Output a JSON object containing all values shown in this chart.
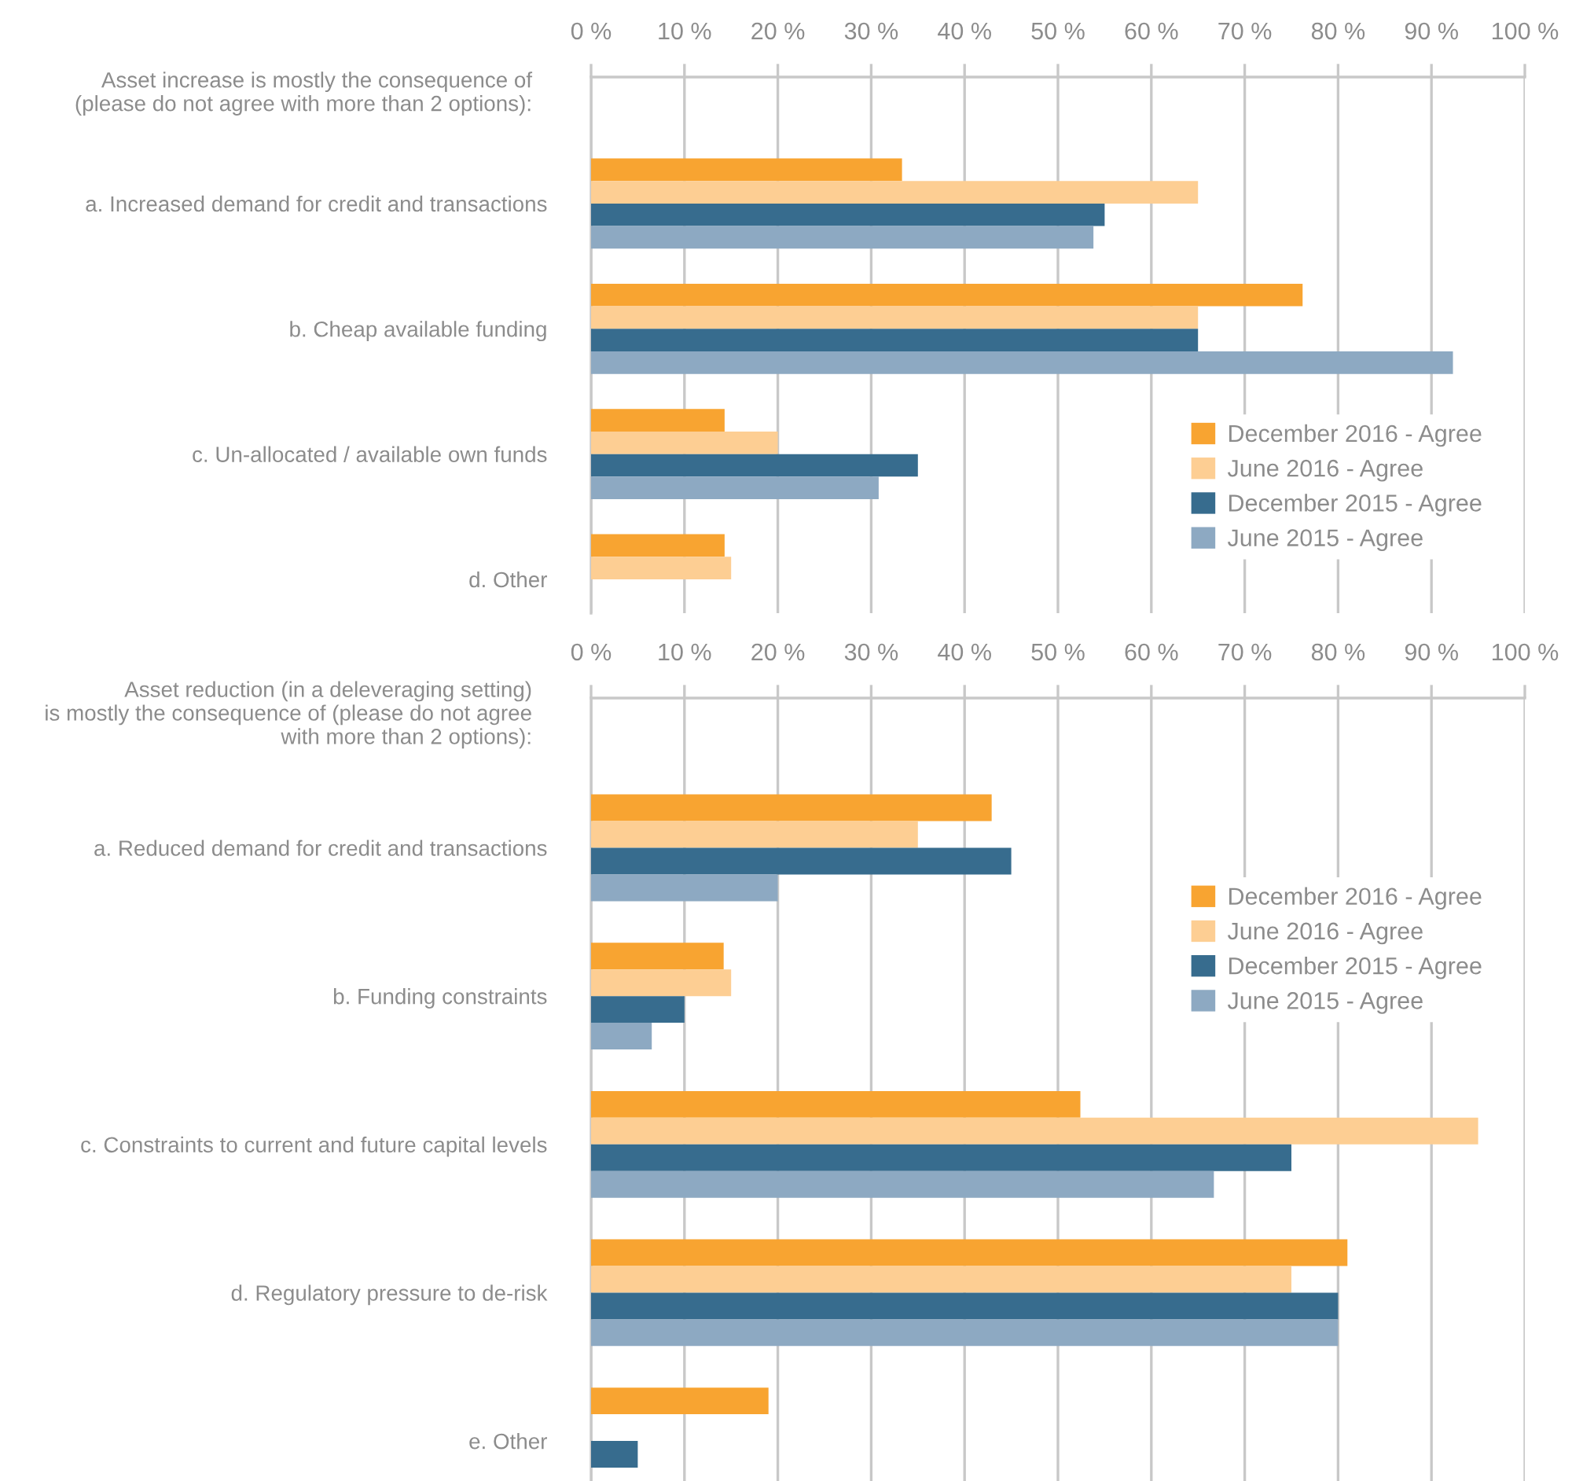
{
  "chart_data": [
    {
      "type": "bar",
      "orientation": "horizontal",
      "title": "Asset increase is mostly the consequence of\n(please do not agree with more than 2 options):",
      "categories": [
        "a. Increased demand for credit and transactions",
        "b. Cheap available funding",
        "c. Un-allocated / available own funds",
        "d. Other"
      ],
      "series": [
        {
          "name": "December 2016 - Agree",
          "color": "#f8a431",
          "values": [
            33.3,
            76.2,
            14.3,
            14.3
          ]
        },
        {
          "name": "June 2016 - Agree",
          "color": "#fdce93",
          "values": [
            65,
            65,
            20,
            15
          ]
        },
        {
          "name": "December 2015 - Agree",
          "color": "#376c8e",
          "values": [
            55,
            65,
            35,
            null
          ]
        },
        {
          "name": "June 2015 - Agree",
          "color": "#8da9c2",
          "values": [
            53.8,
            92.3,
            30.8,
            null
          ]
        }
      ],
      "xlim": [
        0,
        100
      ],
      "xticks": [
        {
          "value": 0,
          "label": "0 %"
        },
        {
          "value": 10,
          "label": "10 %"
        },
        {
          "value": 20,
          "label": "20 %"
        },
        {
          "value": 30,
          "label": "30 %"
        },
        {
          "value": 40,
          "label": "40 %"
        },
        {
          "value": 50,
          "label": "50 %"
        },
        {
          "value": 60,
          "label": "60 %"
        },
        {
          "value": 70,
          "label": "70 %"
        },
        {
          "value": 80,
          "label": "80 %"
        },
        {
          "value": 90,
          "label": "90 %"
        },
        {
          "value": 100,
          "label": "100 %"
        }
      ],
      "grid": "x",
      "legend": "bottom right"
    },
    {
      "type": "bar",
      "orientation": "horizontal",
      "title": "Asset reduction (in a deleveraging setting)\nis mostly the consequence of (please do not agree\nwith more than 2 options):",
      "categories": [
        "a. Reduced demand for credit and transactions",
        "b. Funding constraints",
        "c. Constraints to current and future capital levels",
        "d. Regulatory pressure to de-risk",
        "e. Other"
      ],
      "series": [
        {
          "name": "December 2016 - Agree",
          "color": "#f8a431",
          "values": [
            42.9,
            14.2,
            52.4,
            81,
            19
          ]
        },
        {
          "name": "June 2016 - Agree",
          "color": "#fdce93",
          "values": [
            35,
            15,
            95,
            75,
            null
          ]
        },
        {
          "name": "December 2015 - Agree",
          "color": "#376c8e",
          "values": [
            45,
            10,
            75,
            80,
            5
          ]
        },
        {
          "name": "June 2015 - Agree",
          "color": "#8da9c2",
          "values": [
            20,
            6.5,
            66.7,
            80,
            null
          ]
        }
      ],
      "xlim": [
        0,
        100
      ],
      "xticks": [
        {
          "value": 0,
          "label": "0 %"
        },
        {
          "value": 10,
          "label": "10 %"
        },
        {
          "value": 20,
          "label": "20 %"
        },
        {
          "value": 30,
          "label": "30 %"
        },
        {
          "value": 40,
          "label": "40 %"
        },
        {
          "value": 50,
          "label": "50 %"
        },
        {
          "value": 60,
          "label": "60 %"
        },
        {
          "value": 70,
          "label": "70 %"
        },
        {
          "value": 80,
          "label": "80 %"
        },
        {
          "value": 90,
          "label": "90 %"
        },
        {
          "value": 100,
          "label": "100 %"
        }
      ],
      "grid": "x",
      "legend": "top right"
    }
  ]
}
